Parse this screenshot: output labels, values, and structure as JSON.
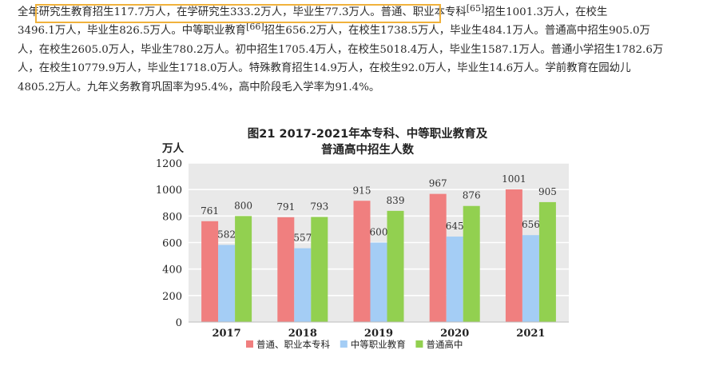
{
  "paragraph": {
    "part1": "全年研究生教育招生117.7万人，在学研究生333.2万人，毕业生77.3万人。普通、职业本专科",
    "sup1": "[65]",
    "part2": "招生1001.3万人，在校生",
    "line2": "3496.1万人，毕业生826.5万人。中等职业教育",
    "sup2": "[66]",
    "part3": "招生656.2万人，在校生1738.5万人，毕业生484.1万人。普通高中招生905.0万",
    "line3": "人，在校生2605.0万人，毕业生780.2万人。初中招生1705.4万人，在校生5018.4万人，毕业生1587.1万人。普通小学招生1782.6万",
    "line4": "人，在校生10779.9万人，毕业生1718.0万人。特殊教育招生14.9万人，在校生92.0万人，毕业生14.6万人。学前教育在园幼儿",
    "line5": "4805.2万人。九年义务教育巩固率为95.4%，高中阶段毛入学率为91.4%。"
  },
  "chart_data": {
    "type": "bar",
    "title_line1": "图21   2017-2021年本专科、中等职业教育及",
    "title_line2": "普通高中招生人数",
    "ylabel": "万人",
    "ylim": [
      0,
      1200
    ],
    "yticks": [
      "0",
      "200",
      "400",
      "600",
      "800",
      "1000",
      "1200"
    ],
    "categories": [
      "2017",
      "2018",
      "2019",
      "2020",
      "2021"
    ],
    "grid": true,
    "legend_position": "bottom",
    "series": [
      {
        "name": "普通、职业本专科",
        "color": "#f07f7f",
        "values": [
          761,
          791,
          915,
          967,
          1001
        ],
        "labels": [
          "761",
          "791",
          "915",
          "967",
          "1001"
        ]
      },
      {
        "name": "中等职业教育",
        "color": "#a4cdf5",
        "values": [
          582,
          557,
          600,
          645,
          656
        ],
        "labels": [
          "582",
          "557",
          "600",
          "645",
          "656"
        ]
      },
      {
        "name": "普通高中",
        "color": "#92d050",
        "values": [
          800,
          793,
          839,
          876,
          905
        ],
        "labels": [
          "800",
          "793",
          "839",
          "876",
          "905"
        ]
      }
    ]
  }
}
